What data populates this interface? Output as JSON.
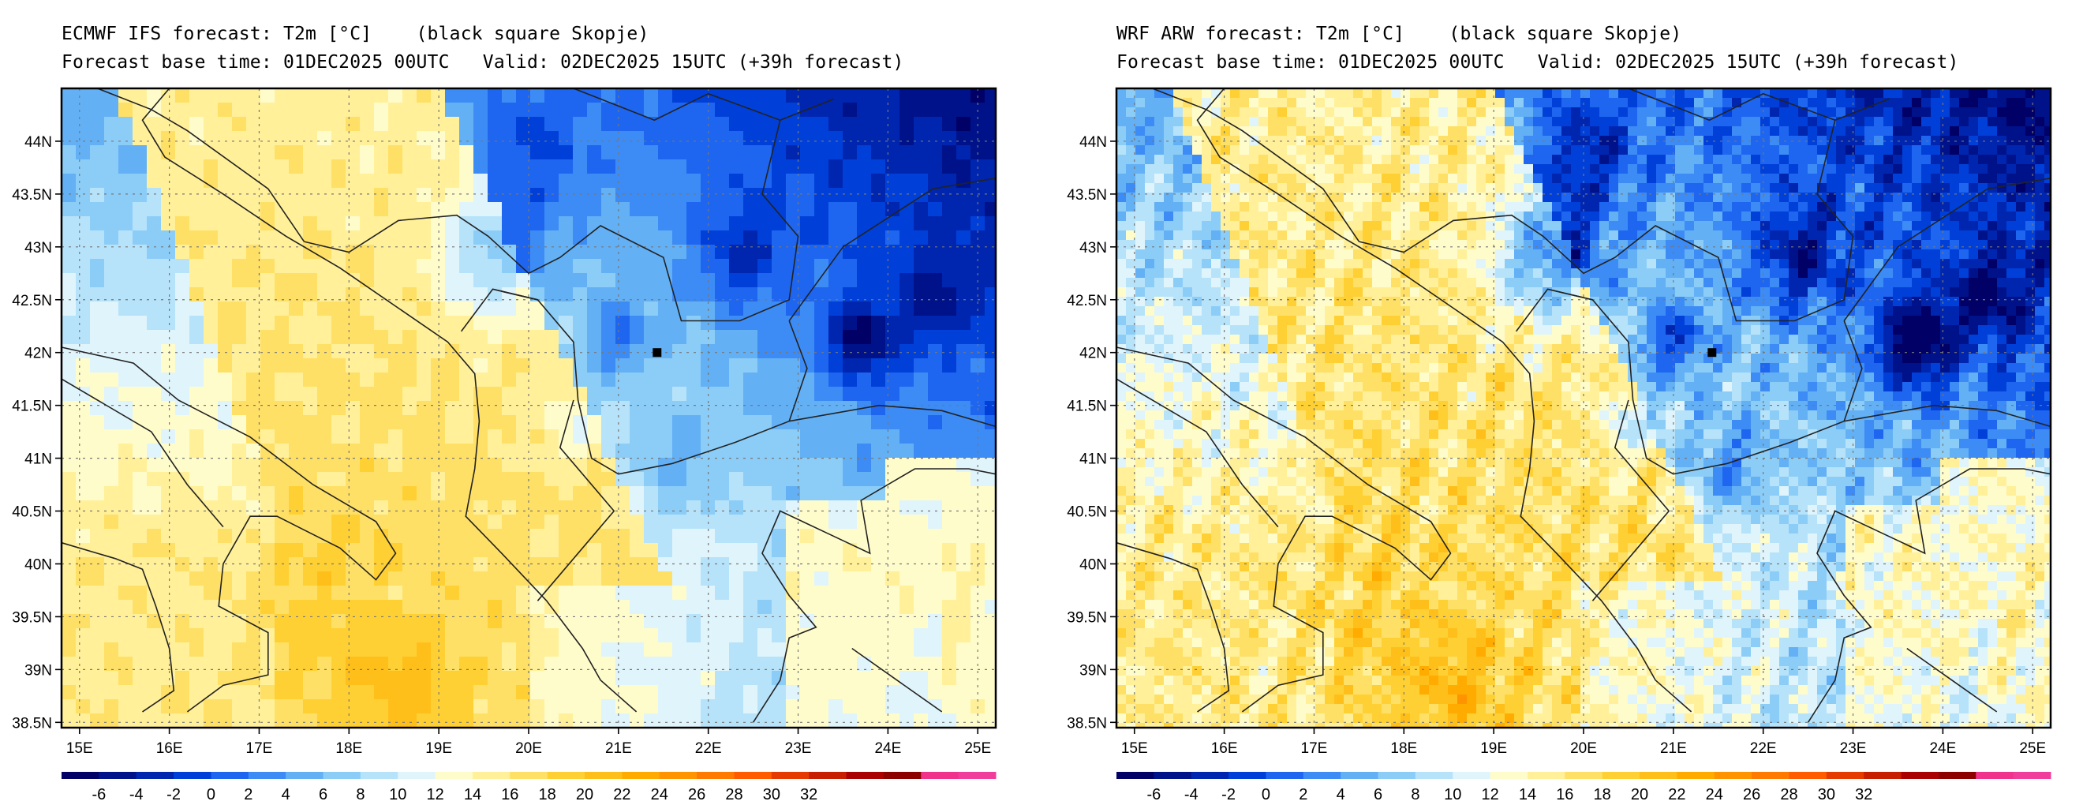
{
  "panels": [
    {
      "id": "ecmwf",
      "title_line1": "ECMWF IFS forecast: T2m [°C]    (black square Skopje)",
      "title_line2": "Forecast base time: 01DEC2025 00UTC   Valid: 02DEC2025 15UTC (+39h forecast)"
    },
    {
      "id": "wrf",
      "title_line1": "WRF ARW forecast: T2m [°C]    (black square Skopje)",
      "title_line2": "Forecast base time: 01DEC2025 00UTC   Valid: 02DEC2025 15UTC (+39h forecast)"
    }
  ],
  "map": {
    "lon_range": [
      14.8,
      25.2
    ],
    "lat_range": [
      38.45,
      44.5
    ],
    "lon_ticks": [
      "15E",
      "16E",
      "17E",
      "18E",
      "19E",
      "20E",
      "21E",
      "22E",
      "23E",
      "24E",
      "25E"
    ],
    "lat_ticks": [
      "44N",
      "43.5N",
      "43N",
      "42.5N",
      "42N",
      "41.5N",
      "41N",
      "40.5N",
      "40N",
      "39.5N",
      "39N",
      "38.5N"
    ],
    "gridlines": "dotted",
    "marker": {
      "name": "Skopje",
      "lon": 21.43,
      "lat": 42.0
    }
  },
  "colorbar": {
    "labels": [
      "-6",
      "-4",
      "-2",
      "0",
      "2",
      "4",
      "6",
      "8",
      "10",
      "12",
      "14",
      "16",
      "18",
      "20",
      "22",
      "24",
      "26",
      "28",
      "30",
      "32"
    ],
    "colors": [
      "#000066",
      "#00128a",
      "#0026b0",
      "#0040d8",
      "#1e66f0",
      "#3d8cf5",
      "#63b0f5",
      "#8ccdf8",
      "#b7e3fa",
      "#e0f4fb",
      "#fffccc",
      "#fff099",
      "#ffe066",
      "#ffd033",
      "#ffbf1a",
      "#ffab00",
      "#ff9400",
      "#ff7a00",
      "#ff5c00",
      "#e63b00",
      "#c81e00",
      "#aa0000",
      "#8c0000",
      "#f0328c",
      "#f03c9b"
    ]
  }
}
